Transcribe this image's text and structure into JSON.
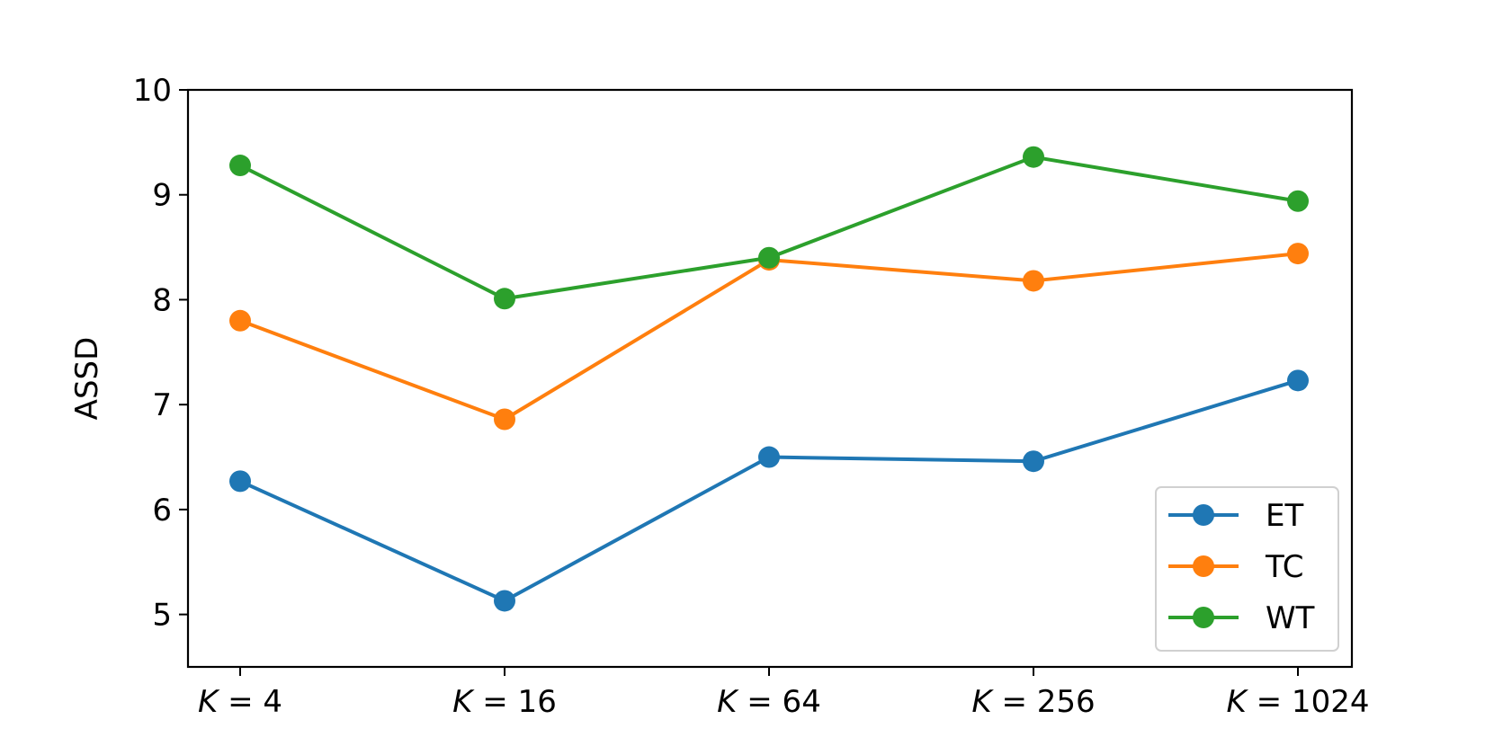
{
  "chart_data": {
    "type": "line",
    "categories": [
      {
        "var": "K",
        "eq": " = ",
        "num": "4"
      },
      {
        "var": "K",
        "eq": " = ",
        "num": "16"
      },
      {
        "var": "K",
        "eq": " = ",
        "num": "64"
      },
      {
        "var": "K",
        "eq": " = ",
        "num": "256"
      },
      {
        "var": "K",
        "eq": " = ",
        "num": "1024"
      }
    ],
    "ylabel": "ASSD",
    "ylim": [
      4.5,
      10
    ],
    "yticks": [
      5,
      6,
      7,
      8,
      9,
      10
    ],
    "grid": false,
    "legend_position": "lower-right",
    "series": [
      {
        "name": "ET",
        "color": "#1f77b4",
        "values": [
          6.27,
          5.13,
          6.5,
          6.46,
          7.23
        ]
      },
      {
        "name": "TC",
        "color": "#ff7f0e",
        "values": [
          7.8,
          6.86,
          8.38,
          8.18,
          8.44
        ]
      },
      {
        "name": "WT",
        "color": "#2ca02c",
        "values": [
          9.28,
          8.01,
          8.4,
          9.36,
          8.94
        ]
      }
    ]
  }
}
